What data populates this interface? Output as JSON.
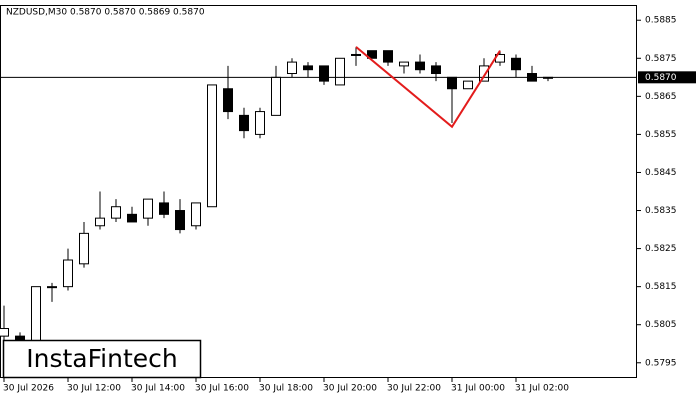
{
  "chart_data": {
    "type": "candlestick",
    "title": "NZDUSD,M30  0.5870 0.5870 0.5869 0.5870",
    "watermark": "InstaFintech",
    "categories": [
      "30 Jul 2026",
      null,
      null,
      null,
      "30 Jul 12:00",
      null,
      null,
      null,
      "30 Jul 14:00",
      null,
      null,
      null,
      "30 Jul 16:00",
      null,
      null,
      null,
      "30 Jul 18:00",
      null,
      null,
      null,
      "30 Jul 20:00",
      null,
      null,
      null,
      "30 Jul 22:00",
      null,
      null,
      null,
      "31 Jul 00:00",
      null,
      null,
      null,
      "31 Jul 02:00",
      null,
      null
    ],
    "open": [
      0.5802,
      0.5802,
      0.5792,
      0.5815,
      0.5815,
      0.5821,
      0.5831,
      0.5833,
      0.5834,
      0.5833,
      0.5837,
      0.5835,
      0.5831,
      0.5836,
      0.5867,
      0.586,
      0.5855,
      0.586,
      0.5871,
      0.5873,
      0.5873,
      0.5868,
      0.5876,
      0.5877,
      0.5877,
      0.5873,
      0.5874,
      0.5873,
      0.587,
      0.5867,
      0.5869,
      0.5874,
      0.5875,
      0.5871,
      0.587
    ],
    "high": [
      0.581,
      0.5803,
      0.5815,
      0.5816,
      0.5825,
      0.5832,
      0.584,
      0.5838,
      0.5836,
      0.5838,
      0.584,
      0.5838,
      0.5837,
      0.5868,
      0.5873,
      0.5862,
      0.5862,
      0.5873,
      0.5875,
      0.5874,
      0.5873,
      0.5875,
      0.5878,
      0.5877,
      0.5877,
      0.5874,
      0.5876,
      0.5874,
      0.587,
      0.5869,
      0.5875,
      0.5877,
      0.5876,
      0.5873,
      0.587
    ],
    "low": [
      0.58,
      0.5795,
      0.5791,
      0.5811,
      0.5814,
      0.582,
      0.583,
      0.5832,
      0.5832,
      0.5831,
      0.5833,
      0.5829,
      0.583,
      0.5836,
      0.5859,
      0.5854,
      0.5854,
      0.586,
      0.587,
      0.587,
      0.5868,
      0.5868,
      0.5873,
      0.5875,
      0.5873,
      0.5871,
      0.5871,
      0.5869,
      0.5858,
      0.5867,
      0.5869,
      0.5873,
      0.587,
      0.5869,
      0.5869
    ],
    "close": [
      0.5804,
      0.5799,
      0.5815,
      0.5815,
      0.5822,
      0.5829,
      0.5833,
      0.5836,
      0.5832,
      0.5838,
      0.5834,
      0.583,
      0.5837,
      0.5868,
      0.5861,
      0.5856,
      0.5861,
      0.587,
      0.5874,
      0.5872,
      0.5869,
      0.5875,
      0.5876,
      0.5875,
      0.5874,
      0.5874,
      0.5872,
      0.5871,
      0.5867,
      0.5869,
      0.5873,
      0.5876,
      0.5872,
      0.5869,
      0.587
    ],
    "up_color": "#ffffff",
    "down_color": "#000000",
    "ylim": [
      0.5791,
      0.5889
    ],
    "yticks": [
      0.5795,
      0.5805,
      0.5815,
      0.5825,
      0.5835,
      0.5845,
      0.5855,
      0.5865,
      0.5875,
      0.5885
    ],
    "last_price": {
      "value": 0.587,
      "label": "0.5870"
    },
    "pattern": {
      "color": "#e31c1c",
      "x": [
        22,
        28,
        31
      ],
      "values": [
        0.5878,
        0.5857,
        0.5877
      ]
    }
  }
}
